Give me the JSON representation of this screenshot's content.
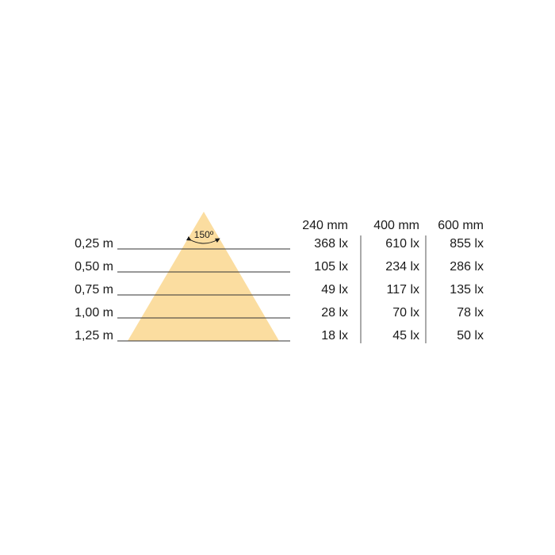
{
  "beam_angle": "150º",
  "beam_color": "#FBDDA0",
  "distances": [
    "0,25 m",
    "0,50 m",
    "0,75 m",
    "1,00 m",
    "1,25 m"
  ],
  "columns": [
    {
      "header": "240 mm",
      "values": [
        "368 lx",
        "105 lx",
        "49 lx",
        "28 lx",
        "18 lx"
      ]
    },
    {
      "header": "400 mm",
      "values": [
        "610 lx",
        "234 lx",
        "117 lx",
        "70 lx",
        "45 lx"
      ]
    },
    {
      "header": "600 mm",
      "values": [
        "855 lx",
        "286 lx",
        "135 lx",
        "78 lx",
        "50 lx"
      ]
    }
  ]
}
